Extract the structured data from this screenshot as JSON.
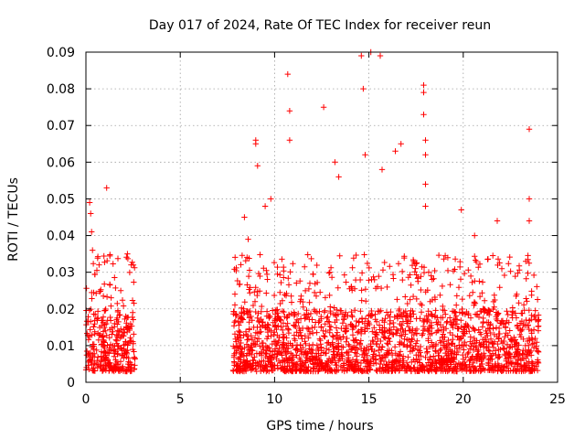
{
  "chart_data": {
    "type": "scatter",
    "title": "Day 017 of 2024, Rate Of TEC Index for receiver reun",
    "xlabel": "GPS time / hours",
    "ylabel": "ROTI / TECUs",
    "xlim": [
      0,
      25
    ],
    "ylim": [
      0,
      0.09
    ],
    "xticks": [
      0,
      5,
      10,
      15,
      20,
      25
    ],
    "xtick_labels": [
      "0",
      "5",
      "10",
      "15",
      "20",
      "25"
    ],
    "yticks": [
      0,
      0.01,
      0.02,
      0.03,
      0.04,
      0.05,
      0.06,
      0.07,
      0.08,
      0.09
    ],
    "ytick_labels": [
      "0",
      "0.01",
      "0.02",
      "0.03",
      "0.04",
      "0.05",
      "0.06",
      "0.07",
      "0.08",
      "0.09"
    ],
    "grid": true,
    "marker": "+",
    "color": "#ff0000",
    "series": [
      {
        "name": "ROTI",
        "coverage_segments_hours": [
          [
            0.0,
            2.6
          ],
          [
            7.8,
            24.0
          ]
        ],
        "typical_range": [
          0.003,
          0.02
        ],
        "notable_points": [
          {
            "x": 0.2,
            "y": 0.049
          },
          {
            "x": 0.25,
            "y": 0.046
          },
          {
            "x": 0.3,
            "y": 0.041
          },
          {
            "x": 0.35,
            "y": 0.036
          },
          {
            "x": 0.7,
            "y": 0.032
          },
          {
            "x": 1.1,
            "y": 0.053
          },
          {
            "x": 2.2,
            "y": 0.035
          },
          {
            "x": 2.4,
            "y": 0.032
          },
          {
            "x": 8.4,
            "y": 0.045
          },
          {
            "x": 8.6,
            "y": 0.039
          },
          {
            "x": 9.0,
            "y": 0.066
          },
          {
            "x": 9.0,
            "y": 0.065
          },
          {
            "x": 9.1,
            "y": 0.059
          },
          {
            "x": 9.5,
            "y": 0.048
          },
          {
            "x": 9.8,
            "y": 0.05
          },
          {
            "x": 10.7,
            "y": 0.084
          },
          {
            "x": 10.8,
            "y": 0.074
          },
          {
            "x": 10.8,
            "y": 0.066
          },
          {
            "x": 12.6,
            "y": 0.075
          },
          {
            "x": 13.2,
            "y": 0.06
          },
          {
            "x": 13.4,
            "y": 0.056
          },
          {
            "x": 14.6,
            "y": 0.089
          },
          {
            "x": 14.7,
            "y": 0.08
          },
          {
            "x": 14.8,
            "y": 0.062
          },
          {
            "x": 15.1,
            "y": 0.09
          },
          {
            "x": 15.6,
            "y": 0.089
          },
          {
            "x": 15.7,
            "y": 0.058
          },
          {
            "x": 16.4,
            "y": 0.063
          },
          {
            "x": 16.7,
            "y": 0.065
          },
          {
            "x": 17.9,
            "y": 0.081
          },
          {
            "x": 17.9,
            "y": 0.079
          },
          {
            "x": 17.9,
            "y": 0.073
          },
          {
            "x": 18.0,
            "y": 0.066
          },
          {
            "x": 18.0,
            "y": 0.062
          },
          {
            "x": 18.0,
            "y": 0.054
          },
          {
            "x": 18.0,
            "y": 0.048
          },
          {
            "x": 19.9,
            "y": 0.047
          },
          {
            "x": 20.6,
            "y": 0.04
          },
          {
            "x": 21.8,
            "y": 0.044
          },
          {
            "x": 23.5,
            "y": 0.069
          },
          {
            "x": 23.5,
            "y": 0.05
          },
          {
            "x": 23.5,
            "y": 0.044
          }
        ]
      }
    ]
  }
}
